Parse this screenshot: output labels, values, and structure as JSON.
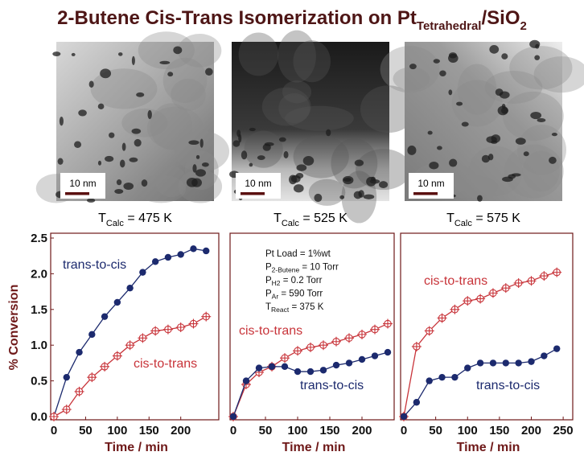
{
  "title": {
    "parts": [
      "2-Butene Cis-Trans Isomerization on Pt",
      "Tetrahedral",
      "/SiO",
      "2"
    ]
  },
  "images": [
    {
      "scale_bar": "10 nm",
      "caption": [
        "T",
        "Calc",
        " = 475 K"
      ]
    },
    {
      "scale_bar": "10 nm",
      "caption": [
        "T",
        "Calc",
        " = 525 K"
      ]
    },
    {
      "scale_bar": "10 nm",
      "caption": [
        "T",
        "Calc",
        " = 575 K"
      ]
    }
  ],
  "chart_data": [
    {
      "type": "line",
      "xlabel": "Time / min",
      "ylabel": "% Conversion",
      "xlim": [
        0,
        260
      ],
      "ylim": [
        0,
        2.5
      ],
      "xticks": [
        0,
        50,
        100,
        150,
        200
      ],
      "yticks": [
        {
          "value": 0,
          "label": "0.0"
        },
        {
          "value": 0.5,
          "label": "0.5"
        },
        {
          "value": 1,
          "label": "1.0"
        },
        {
          "value": 1.5,
          "label": "1.5"
        },
        {
          "value": 2,
          "label": "2.0"
        },
        {
          "value": 2.5,
          "label": "2.5"
        }
      ],
      "x": [
        0,
        20,
        40,
        60,
        80,
        100,
        120,
        140,
        160,
        180,
        200,
        220,
        240
      ],
      "series": [
        {
          "name": "trans-to-cis",
          "color": "#1c2a6e",
          "marker": "filled",
          "values": [
            0,
            0.55,
            0.9,
            1.15,
            1.4,
            1.6,
            1.8,
            2.02,
            2.17,
            2.23,
            2.27,
            2.35,
            2.32
          ]
        },
        {
          "name": "cis-to-trans",
          "color": "#c8343a",
          "marker": "cross",
          "values": [
            0,
            0.1,
            0.35,
            0.55,
            0.7,
            0.85,
            1.0,
            1.1,
            1.2,
            1.22,
            1.25,
            1.3,
            1.4
          ]
        }
      ]
    },
    {
      "type": "line",
      "xlabel": "Time / min",
      "xlim": [
        0,
        250
      ],
      "ylim": [
        0,
        2.5
      ],
      "xticks": [
        0,
        50,
        100,
        150,
        200
      ],
      "x": [
        0,
        20,
        40,
        60,
        80,
        100,
        120,
        140,
        160,
        180,
        200,
        220,
        240
      ],
      "annotations": [
        [
          "Pt Load = 1%wt"
        ],
        [
          "P",
          "2-Butene",
          " = 10 Torr"
        ],
        [
          "P",
          "H2",
          " = 0.2 Torr"
        ],
        [
          "P",
          "Ar",
          " = 590 Torr"
        ],
        [
          "T",
          "React",
          " = 375 K"
        ]
      ],
      "series": [
        {
          "name": "cis-to-trans",
          "color": "#c8343a",
          "marker": "cross",
          "values": [
            0,
            0.45,
            0.62,
            0.7,
            0.82,
            0.92,
            0.97,
            1.0,
            1.05,
            1.1,
            1.15,
            1.22,
            1.3
          ]
        },
        {
          "name": "trans-to-cis",
          "color": "#1c2a6e",
          "marker": "filled",
          "values": [
            0,
            0.5,
            0.68,
            0.7,
            0.7,
            0.63,
            0.63,
            0.65,
            0.72,
            0.75,
            0.8,
            0.85,
            0.9
          ]
        }
      ]
    },
    {
      "type": "line",
      "xlabel": "Time / min",
      "xlim": [
        0,
        265
      ],
      "ylim": [
        0,
        2.5
      ],
      "xticks": [
        0,
        50,
        100,
        150,
        200,
        250
      ],
      "x": [
        0,
        20,
        40,
        60,
        80,
        100,
        120,
        140,
        160,
        180,
        200,
        220,
        240
      ],
      "series": [
        {
          "name": "cis-to-trans",
          "color": "#c8343a",
          "marker": "cross",
          "values": [
            0,
            0.98,
            1.2,
            1.38,
            1.5,
            1.62,
            1.65,
            1.73,
            1.8,
            1.87,
            1.9,
            1.97,
            2.02
          ]
        },
        {
          "name": "trans-to-cis",
          "color": "#1c2a6e",
          "marker": "filled",
          "values": [
            0,
            0.2,
            0.5,
            0.55,
            0.55,
            0.68,
            0.75,
            0.75,
            0.75,
            0.75,
            0.77,
            0.85,
            0.95
          ]
        }
      ]
    }
  ]
}
